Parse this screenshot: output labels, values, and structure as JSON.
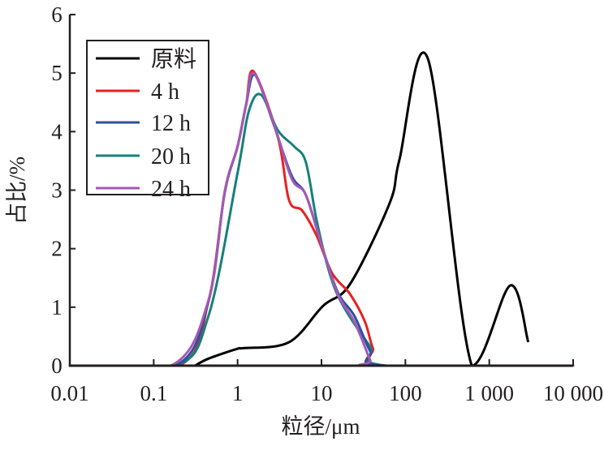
{
  "chart_data": {
    "type": "line",
    "title": "",
    "xlabel": "粒径/μm",
    "ylabel": "占比/%",
    "xscale": "log",
    "xlim": [
      0.01,
      10000
    ],
    "ylim": [
      0,
      6
    ],
    "xticks": [
      0.01,
      0.1,
      1,
      10,
      100,
      1000,
      10000
    ],
    "xtick_labels": [
      "0.01",
      "0.1",
      "1",
      "10",
      "100",
      "1 000",
      "10 000"
    ],
    "yticks": [
      0,
      1,
      2,
      3,
      4,
      5,
      6
    ],
    "ytick_labels": [
      "0",
      "1",
      "2",
      "3",
      "4",
      "5",
      "6"
    ],
    "grid": false,
    "legend_position": "top-left",
    "series": [
      {
        "name": "原料",
        "color": "#000000",
        "x": [
          0.31,
          0.45,
          1.0,
          1.17,
          4.1,
          10.4,
          22,
          65,
          85,
          186,
          620,
          1780,
          2900
        ],
        "y": [
          0,
          0.12,
          0.29,
          0.3,
          0.4,
          1.02,
          1.4,
          2.78,
          3.52,
          5.24,
          0,
          1.37,
          0.42
        ]
      },
      {
        "name": "4 h",
        "color": "#e8211f",
        "x": [
          0.01,
          0.2,
          0.45,
          0.7,
          1.0,
          1.26,
          1.55,
          3.03,
          4.1,
          5.9,
          8.7,
          13.4,
          22,
          33,
          41,
          55,
          10000
        ],
        "y": [
          0,
          0,
          1.1,
          2.95,
          3.75,
          4.45,
          5.03,
          3.9,
          2.83,
          2.65,
          2.23,
          1.58,
          1.22,
          0.75,
          0.3,
          0,
          0
        ]
      },
      {
        "name": "12 h",
        "color": "#2e4fa0",
        "x": [
          0.01,
          0.18,
          0.45,
          0.7,
          1.0,
          1.26,
          1.6,
          2.65,
          4.4,
          6.5,
          10.1,
          15.7,
          24.7,
          38,
          55,
          10000
        ],
        "y": [
          0,
          0,
          1.1,
          2.95,
          3.75,
          4.45,
          4.97,
          4.15,
          3.25,
          2.92,
          2.05,
          1.25,
          0.85,
          0.25,
          0,
          0
        ]
      },
      {
        "name": "20 h",
        "color": "#17807a",
        "x": [
          0.01,
          0.18,
          0.45,
          1.0,
          1.36,
          1.9,
          3.0,
          4.7,
          6.5,
          8.7,
          12.5,
          18,
          38,
          60,
          10000
        ],
        "y": [
          0,
          0,
          0.85,
          3.3,
          4.35,
          4.63,
          4.03,
          3.75,
          3.48,
          2.5,
          1.58,
          1.03,
          0.33,
          0,
          0
        ]
      },
      {
        "name": "24 h",
        "color": "#a25ab5",
        "x": [
          0.01,
          0.16,
          0.45,
          0.7,
          1.0,
          1.26,
          1.55,
          2.65,
          4.4,
          6.5,
          10.1,
          15.7,
          24.7,
          38,
          43,
          10000
        ],
        "y": [
          0,
          0,
          1.12,
          2.97,
          3.75,
          4.45,
          5.0,
          4.17,
          3.2,
          2.92,
          2.05,
          1.22,
          0.75,
          0.1,
          0,
          0
        ]
      }
    ]
  }
}
